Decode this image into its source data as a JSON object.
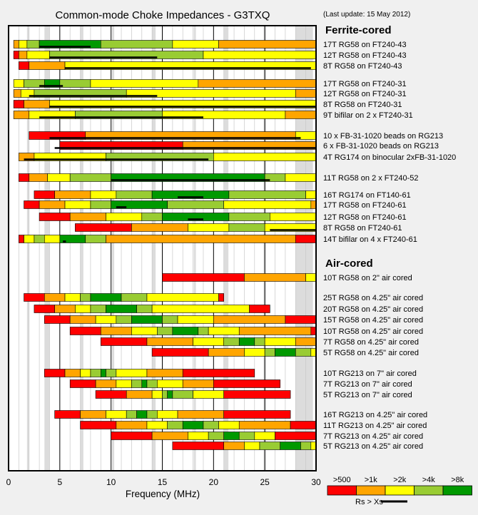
{
  "chart_data": {
    "type": "bar",
    "orientation": "horizontal-ranges",
    "title": "Common-mode Choke Impedances - G3TXQ",
    "subtitle": "(Last update: 15 May 2012)",
    "xlabel": "Frequency (MHz)",
    "xlim": [
      0,
      30
    ],
    "xticks": [
      "0",
      "5",
      "10",
      "15",
      "20",
      "25",
      "30"
    ],
    "grid": "minor frequency bands shaded, major lines every 5 MHz",
    "colors": {
      ">500": "#ff0000",
      ">1k": "#ffa500",
      ">2k": "#ffff00",
      ">4k": "#99cc33",
      ">8k": "#009900"
    },
    "legend": {
      "categories": [
        ">500",
        ">1k",
        ">2k",
        ">4k",
        ">8k"
      ],
      "rs_label": "Rs > Xs"
    },
    "section_labels": [
      "Ferrite-cored",
      "Air-cored"
    ],
    "rows": [
      {
        "name": "17T RG58 on FT240-43",
        "segments": [
          [
            0.5,
            1,
            "o"
          ],
          [
            1,
            1.8,
            "y"
          ],
          [
            1.8,
            3,
            "lg"
          ],
          [
            3,
            9,
            "g"
          ],
          [
            9,
            16,
            "lg"
          ],
          [
            16,
            20.5,
            "y"
          ],
          [
            20.5,
            30,
            "o"
          ]
        ],
        "rs": [
          [
            3,
            8
          ]
        ]
      },
      {
        "name": "12T RG58 on FT240-43",
        "segments": [
          [
            0.5,
            1,
            "r"
          ],
          [
            1,
            1.8,
            "o"
          ],
          [
            1.8,
            4,
            "y"
          ],
          [
            4,
            19,
            "lg"
          ],
          [
            19,
            30,
            "y"
          ]
        ],
        "rs": [
          [
            4,
            14.5
          ]
        ]
      },
      {
        "name": "8T RG58 on FT240-43",
        "segments": [
          [
            1,
            2,
            "r"
          ],
          [
            2,
            5.5,
            "o"
          ],
          [
            5.5,
            30,
            "y"
          ]
        ],
        "rs": [
          [
            5.5,
            29.5
          ]
        ]
      },
      {
        "name": "17T RG58 on FT240-31",
        "segments": [
          [
            0.5,
            1.5,
            "y"
          ],
          [
            1.5,
            3.5,
            "lg"
          ],
          [
            3.5,
            5,
            "g"
          ],
          [
            5,
            8,
            "lg"
          ],
          [
            8,
            18.5,
            "y"
          ],
          [
            18.5,
            30,
            "o"
          ]
        ],
        "rs": [
          [
            3,
            5.3
          ]
        ]
      },
      {
        "name": "12T RG58 on FT240-31",
        "segments": [
          [
            0.5,
            1.2,
            "o"
          ],
          [
            1.2,
            2.5,
            "y"
          ],
          [
            2.5,
            11.5,
            "lg"
          ],
          [
            11.5,
            28,
            "y"
          ],
          [
            28,
            30,
            "o"
          ]
        ],
        "rs": [
          [
            2,
            14.5
          ]
        ]
      },
      {
        "name": "8T RG58 on FT240-31",
        "segments": [
          [
            0.5,
            1.5,
            "r"
          ],
          [
            1.5,
            4,
            "o"
          ],
          [
            4,
            30,
            "y"
          ]
        ],
        "rs": [
          [
            4,
            30
          ]
        ]
      },
      {
        "name": "9T bifilar on 2 x FT240-31",
        "segments": [
          [
            0.5,
            2,
            "o"
          ],
          [
            2,
            6.5,
            "y"
          ],
          [
            6.5,
            15,
            "lg"
          ],
          [
            15,
            27,
            "y"
          ],
          [
            27,
            30,
            "o"
          ]
        ],
        "rs": [
          [
            3,
            19
          ]
        ]
      },
      {
        "name": "10 x FB-31-1020 beads on RG213",
        "segments": [
          [
            2,
            7.5,
            "r"
          ],
          [
            7.5,
            28,
            "o"
          ],
          [
            28,
            30,
            "y"
          ]
        ],
        "rs": [
          [
            4,
            28.5
          ]
        ]
      },
      {
        "name": "6 x FB-31-1020 beads on RG213",
        "segments": [
          [
            5,
            17,
            "r"
          ],
          [
            17,
            30,
            "o"
          ]
        ],
        "rs": [
          [
            4.5,
            30
          ]
        ]
      },
      {
        "name": "4T RG174 on binocular 2xFB-31-1020",
        "segments": [
          [
            1,
            2.5,
            "o"
          ],
          [
            2.5,
            9.5,
            "y"
          ],
          [
            9.5,
            20,
            "lg"
          ],
          [
            20,
            30,
            "y"
          ]
        ],
        "rs": [
          [
            1.5,
            19.5
          ]
        ]
      },
      {
        "name": "11T RG58 on 2 x FT240-52",
        "segments": [
          [
            1,
            2,
            "r"
          ],
          [
            2,
            3.8,
            "o"
          ],
          [
            3.8,
            6,
            "y"
          ],
          [
            6,
            10,
            "lg"
          ],
          [
            10,
            25,
            "g"
          ],
          [
            25,
            27,
            "lg"
          ],
          [
            27,
            30,
            "y"
          ]
        ],
        "rs": [
          [
            10,
            25.5
          ]
        ]
      },
      {
        "name": "16T RG174 on FT140-61",
        "segments": [
          [
            2.5,
            4.5,
            "r"
          ],
          [
            4.5,
            8,
            "o"
          ],
          [
            8,
            10.5,
            "y"
          ],
          [
            10.5,
            14,
            "lg"
          ],
          [
            14,
            21.5,
            "g"
          ],
          [
            21.5,
            29,
            "lg"
          ],
          [
            29,
            30,
            "y"
          ]
        ],
        "rs": [
          [
            16.5,
            19
          ]
        ]
      },
      {
        "name": "17T RG58 on FT240-61",
        "segments": [
          [
            1.5,
            3,
            "r"
          ],
          [
            3,
            5.5,
            "o"
          ],
          [
            5.5,
            8,
            "y"
          ],
          [
            8,
            10,
            "lg"
          ],
          [
            10,
            15.5,
            "g"
          ],
          [
            15.5,
            21,
            "lg"
          ],
          [
            21,
            29.5,
            "y"
          ],
          [
            29.5,
            30,
            "o"
          ]
        ],
        "rs": [
          [
            10.5,
            11.5
          ]
        ]
      },
      {
        "name": "12T RG58 on FT240-61",
        "segments": [
          [
            3,
            6,
            "r"
          ],
          [
            6,
            9.5,
            "o"
          ],
          [
            9.5,
            13,
            "y"
          ],
          [
            13,
            15,
            "lg"
          ],
          [
            15,
            21.5,
            "g"
          ],
          [
            21.5,
            25.5,
            "lg"
          ],
          [
            25.5,
            30,
            "y"
          ]
        ],
        "rs": [
          [
            17.5,
            19
          ]
        ]
      },
      {
        "name": "8T RG58 on FT240-61",
        "segments": [
          [
            6.5,
            12,
            "r"
          ],
          [
            12,
            17.5,
            "o"
          ],
          [
            17.5,
            21.5,
            "y"
          ],
          [
            21.5,
            25,
            "lg"
          ],
          [
            25,
            30,
            "y"
          ]
        ],
        "rs": [
          [
            25.5,
            30
          ]
        ]
      },
      {
        "name": "14T bifilar on 4 x FT240-61",
        "segments": [
          [
            1,
            1.5,
            "r"
          ],
          [
            1.5,
            2.5,
            "y"
          ],
          [
            2.5,
            3.5,
            "lg"
          ],
          [
            3.5,
            5,
            "y"
          ],
          [
            5,
            7.5,
            "g"
          ],
          [
            7.5,
            9.5,
            "lg"
          ],
          [
            9.5,
            28,
            "o"
          ],
          [
            28,
            30,
            "r"
          ]
        ],
        "rs": [
          [
            5.3,
            5.6
          ]
        ]
      },
      {
        "name": "10T RG58 on 2\" air cored",
        "segments": [
          [
            15,
            23,
            "r"
          ],
          [
            23,
            29,
            "o"
          ],
          [
            29,
            30,
            "y"
          ]
        ],
        "rs": []
      },
      {
        "name": "25T RG58 on 4.25\" air cored",
        "segments": [
          [
            1.5,
            3.5,
            "r"
          ],
          [
            3.5,
            5.5,
            "o"
          ],
          [
            5.5,
            7,
            "y"
          ],
          [
            7,
            8,
            "lg"
          ],
          [
            8,
            11,
            "g"
          ],
          [
            11,
            13.5,
            "lg"
          ],
          [
            13.5,
            20.5,
            "y"
          ],
          [
            20.5,
            21,
            "r"
          ]
        ],
        "rs": []
      },
      {
        "name": "20T RG58 on 4.25\" air cored",
        "segments": [
          [
            2.5,
            4.5,
            "r"
          ],
          [
            4.5,
            6.5,
            "o"
          ],
          [
            6.5,
            8,
            "y"
          ],
          [
            8,
            9.5,
            "lg"
          ],
          [
            9.5,
            12.5,
            "g"
          ],
          [
            12.5,
            14,
            "lg"
          ],
          [
            14,
            23.5,
            "y"
          ],
          [
            23.5,
            25.5,
            "r"
          ]
        ],
        "rs": []
      },
      {
        "name": "15T RG58 on 4.25\" air cored",
        "segments": [
          [
            3.5,
            6,
            "r"
          ],
          [
            6,
            8.5,
            "o"
          ],
          [
            8.5,
            10.5,
            "y"
          ],
          [
            10.5,
            12,
            "lg"
          ],
          [
            12,
            15,
            "g"
          ],
          [
            15,
            16.5,
            "lg"
          ],
          [
            16.5,
            20,
            "y"
          ],
          [
            20,
            27,
            "o"
          ],
          [
            27,
            30,
            "r"
          ]
        ],
        "rs": []
      },
      {
        "name": "10T RG58 on 4.25\" air cored",
        "segments": [
          [
            6,
            9,
            "r"
          ],
          [
            9,
            12,
            "o"
          ],
          [
            12,
            14.5,
            "y"
          ],
          [
            14.5,
            16,
            "lg"
          ],
          [
            16,
            18.5,
            "g"
          ],
          [
            18.5,
            19.5,
            "lg"
          ],
          [
            19.5,
            22.5,
            "y"
          ],
          [
            22.5,
            29.5,
            "o"
          ],
          [
            29.5,
            30,
            "r"
          ]
        ],
        "rs": []
      },
      {
        "name": "7T RG58 on 4.25\" air cored",
        "segments": [
          [
            9,
            13.5,
            "r"
          ],
          [
            13.5,
            18,
            "o"
          ],
          [
            18,
            21,
            "y"
          ],
          [
            21,
            22.5,
            "lg"
          ],
          [
            22.5,
            24,
            "g"
          ],
          [
            24,
            25,
            "lg"
          ],
          [
            25,
            28,
            "y"
          ],
          [
            28,
            30,
            "o"
          ]
        ],
        "rs": []
      },
      {
        "name": "5T RG58 on 4.25\" air cored",
        "segments": [
          [
            14,
            19.5,
            "r"
          ],
          [
            19.5,
            23,
            "o"
          ],
          [
            23,
            25,
            "y"
          ],
          [
            25,
            26,
            "lg"
          ],
          [
            26,
            28,
            "g"
          ],
          [
            28,
            29.5,
            "lg"
          ],
          [
            29.5,
            30,
            "y"
          ]
        ],
        "rs": []
      },
      {
        "name": "10T RG213 on 7\" air cored",
        "segments": [
          [
            3.5,
            5.5,
            "r"
          ],
          [
            5.5,
            7,
            "o"
          ],
          [
            7,
            8,
            "y"
          ],
          [
            8,
            9,
            "lg"
          ],
          [
            9,
            9.5,
            "g"
          ],
          [
            9.5,
            10.5,
            "lg"
          ],
          [
            10.5,
            13.5,
            "y"
          ],
          [
            13.5,
            17,
            "o"
          ],
          [
            17,
            24,
            "r"
          ]
        ],
        "rs": []
      },
      {
        "name": "7T RG213 on 7\" air cored",
        "segments": [
          [
            6,
            8.5,
            "r"
          ],
          [
            8.5,
            10.5,
            "o"
          ],
          [
            10.5,
            12,
            "y"
          ],
          [
            12,
            13,
            "lg"
          ],
          [
            13,
            13.5,
            "g"
          ],
          [
            13.5,
            14.5,
            "lg"
          ],
          [
            14.5,
            17,
            "y"
          ],
          [
            17,
            20,
            "o"
          ],
          [
            20,
            26.5,
            "r"
          ]
        ],
        "rs": []
      },
      {
        "name": "5T RG213 on 7\" air cored",
        "segments": [
          [
            8.5,
            11.5,
            "r"
          ],
          [
            11.5,
            14,
            "o"
          ],
          [
            14,
            15,
            "y"
          ],
          [
            15,
            15.5,
            "lg"
          ],
          [
            15.5,
            16,
            "g"
          ],
          [
            16,
            18,
            "lg"
          ],
          [
            18,
            21,
            "y"
          ],
          [
            21,
            27.5,
            "r"
          ]
        ],
        "rs": []
      },
      {
        "name": "16T RG213 on 4.25\" air cored",
        "segments": [
          [
            4.5,
            7,
            "r"
          ],
          [
            7,
            9.5,
            "o"
          ],
          [
            9.5,
            11.5,
            "y"
          ],
          [
            11.5,
            12.5,
            "lg"
          ],
          [
            12.5,
            13.5,
            "g"
          ],
          [
            13.5,
            14.5,
            "lg"
          ],
          [
            14.5,
            16.5,
            "y"
          ],
          [
            16.5,
            21,
            "o"
          ],
          [
            21,
            27.5,
            "r"
          ]
        ],
        "rs": []
      },
      {
        "name": "11T RG213 on 4.25\" air cored",
        "segments": [
          [
            7,
            10.5,
            "r"
          ],
          [
            10.5,
            13.5,
            "o"
          ],
          [
            13.5,
            15.5,
            "y"
          ],
          [
            15.5,
            17,
            "lg"
          ],
          [
            17,
            19,
            "g"
          ],
          [
            19,
            20.5,
            "lg"
          ],
          [
            20.5,
            22.5,
            "y"
          ],
          [
            22.5,
            27.5,
            "o"
          ],
          [
            27.5,
            30,
            "r"
          ]
        ],
        "rs": []
      },
      {
        "name": "7T RG213 on 4.25\" air cored",
        "segments": [
          [
            10,
            14,
            "r"
          ],
          [
            14,
            17.5,
            "o"
          ],
          [
            17.5,
            19.5,
            "y"
          ],
          [
            19.5,
            21,
            "lg"
          ],
          [
            21,
            22.5,
            "g"
          ],
          [
            22.5,
            24,
            "lg"
          ],
          [
            24,
            26,
            "y"
          ],
          [
            26,
            30,
            "r"
          ]
        ],
        "rs": []
      },
      {
        "name": "5T RG213 on 4.25\" air cored",
        "segments": [
          [
            16,
            21,
            "r"
          ],
          [
            21,
            23,
            "o"
          ],
          [
            23,
            24.5,
            "y"
          ],
          [
            24.5,
            26.5,
            "lg"
          ],
          [
            26.5,
            28.5,
            "g"
          ],
          [
            28.5,
            29.5,
            "lg"
          ],
          [
            29.5,
            30,
            "y"
          ]
        ],
        "rs": []
      }
    ]
  }
}
